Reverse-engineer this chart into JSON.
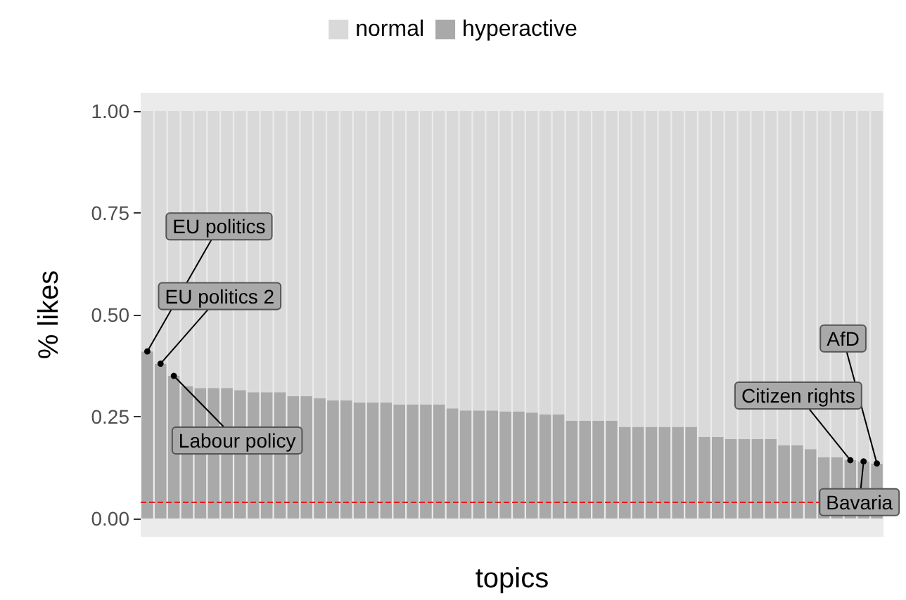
{
  "chart_data": {
    "type": "bar",
    "stacked": true,
    "xlabel": "topics",
    "ylabel": "% likes",
    "categories": [
      null,
      null,
      null,
      null,
      null,
      null,
      null,
      null,
      null,
      null,
      null,
      null,
      null,
      null,
      null,
      null,
      null,
      null,
      null,
      null,
      null,
      null,
      null,
      null,
      null,
      null,
      null,
      null,
      null,
      null,
      null,
      null,
      null,
      null,
      null,
      null,
      null,
      null,
      null,
      null,
      null,
      null,
      null,
      null,
      null,
      null,
      null,
      null,
      null,
      null,
      null,
      null,
      null,
      null,
      null,
      null
    ],
    "series": [
      {
        "name": "hyperactive",
        "color": "#a9a9a9",
        "values": [
          0.41,
          0.38,
          0.35,
          0.325,
          0.32,
          0.32,
          0.32,
          0.315,
          0.31,
          0.31,
          0.31,
          0.3,
          0.3,
          0.295,
          0.29,
          0.29,
          0.285,
          0.285,
          0.285,
          0.28,
          0.28,
          0.28,
          0.28,
          0.27,
          0.265,
          0.265,
          0.265,
          0.263,
          0.263,
          0.26,
          0.255,
          0.255,
          0.24,
          0.24,
          0.24,
          0.24,
          0.225,
          0.225,
          0.225,
          0.225,
          0.225,
          0.225,
          0.2,
          0.2,
          0.195,
          0.195,
          0.195,
          0.195,
          0.18,
          0.18,
          0.17,
          0.15,
          0.15,
          0.143,
          0.14,
          0.135
        ]
      },
      {
        "name": "normal",
        "color": "#d9d9d9",
        "values": [
          0.59,
          0.62,
          0.65,
          0.675,
          0.68,
          0.68,
          0.68,
          0.685,
          0.69,
          0.69,
          0.69,
          0.7,
          0.7,
          0.705,
          0.71,
          0.71,
          0.715,
          0.715,
          0.715,
          0.72,
          0.72,
          0.72,
          0.72,
          0.73,
          0.735,
          0.735,
          0.735,
          0.737,
          0.737,
          0.74,
          0.745,
          0.745,
          0.76,
          0.76,
          0.76,
          0.76,
          0.775,
          0.775,
          0.775,
          0.775,
          0.775,
          0.775,
          0.8,
          0.8,
          0.805,
          0.805,
          0.805,
          0.805,
          0.82,
          0.82,
          0.83,
          0.85,
          0.85,
          0.857,
          0.86,
          0.865
        ]
      }
    ],
    "ylim": [
      -0.045,
      1.045
    ],
    "yticks": [
      {
        "value": 0,
        "label": "0.00"
      },
      {
        "value": 0.25,
        "label": "0.25"
      },
      {
        "value": 0.5,
        "label": "0.50"
      },
      {
        "value": 0.75,
        "label": "0.75"
      },
      {
        "value": 1,
        "label": "1.00"
      }
    ],
    "ref_lines": [
      {
        "axis": "y",
        "value": 0.045,
        "color": "#e41a1c",
        "line_style": "dashed"
      }
    ],
    "annotations": [
      "EU politics",
      "EU politics 2",
      "Labour policy",
      "Citizen rights",
      "Bavaria",
      "AfD"
    ],
    "legend": "top",
    "grid": false
  }
}
